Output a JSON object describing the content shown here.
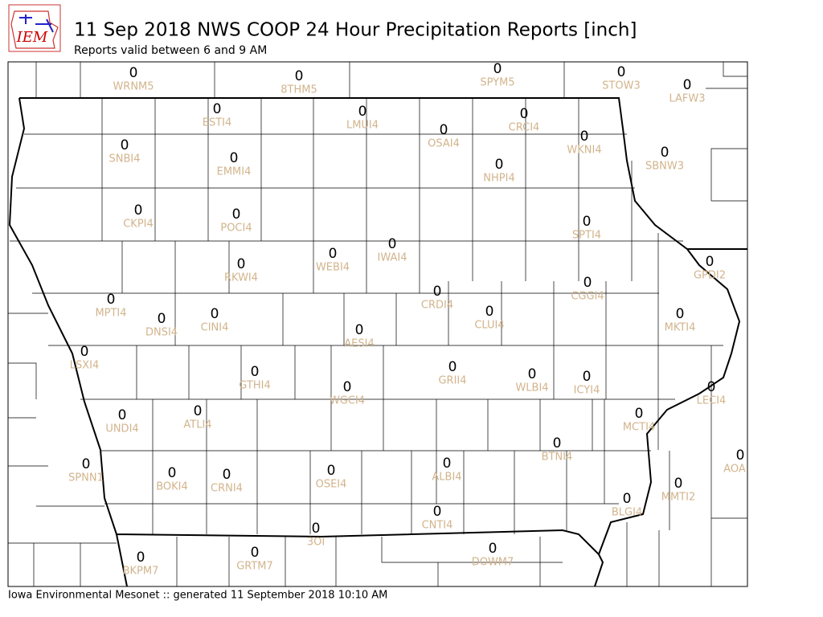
{
  "logo": "IEM",
  "header": {
    "title": "11 Sep 2018 NWS COOP 24 Hour Precipitation Reports [inch]",
    "subtitle": "Reports valid between 6 and 9 AM"
  },
  "stations": [
    {
      "id": "WRNM5",
      "value": 0
    },
    {
      "id": "8THM5",
      "value": 0
    },
    {
      "id": "SPYM5",
      "value": 0
    },
    {
      "id": "STOW3",
      "value": 0
    },
    {
      "id": "LAFW3",
      "value": 0
    },
    {
      "id": "ESTI4",
      "value": 0
    },
    {
      "id": "LMUI4",
      "value": 0
    },
    {
      "id": "CRCI4",
      "value": 0
    },
    {
      "id": "OSAI4",
      "value": 0
    },
    {
      "id": "WKNI4",
      "value": 0
    },
    {
      "id": "SNBI4",
      "value": 0
    },
    {
      "id": "EMMI4",
      "value": 0
    },
    {
      "id": "SBNW3",
      "value": 0
    },
    {
      "id": "NHPI4",
      "value": 0
    },
    {
      "id": "CKPI4",
      "value": 0
    },
    {
      "id": "POCI4",
      "value": 0
    },
    {
      "id": "SPTI4",
      "value": 0
    },
    {
      "id": "IWAI4",
      "value": 0
    },
    {
      "id": "GPDI2",
      "value": 0
    },
    {
      "id": "WEBI4",
      "value": 0
    },
    {
      "id": "RKWI4",
      "value": 0
    },
    {
      "id": "CGGI4",
      "value": 0
    },
    {
      "id": "CRDI4",
      "value": 0
    },
    {
      "id": "MPTI4",
      "value": 0
    },
    {
      "id": "CLUI4",
      "value": 0
    },
    {
      "id": "DNSI4",
      "value": 0
    },
    {
      "id": "CINI4",
      "value": 0
    },
    {
      "id": "MKTI4",
      "value": 0
    },
    {
      "id": "AESI4",
      "value": 0
    },
    {
      "id": "LSXI4",
      "value": 0
    },
    {
      "id": "GRII4",
      "value": 0
    },
    {
      "id": "WLBI4",
      "value": 0
    },
    {
      "id": "ICYI4",
      "value": 0
    },
    {
      "id": "GTHI4",
      "value": 0
    },
    {
      "id": "WGCI4",
      "value": 0
    },
    {
      "id": "LECI4",
      "value": 0
    },
    {
      "id": "ATLI4",
      "value": 0
    },
    {
      "id": "UNDI4",
      "value": 0
    },
    {
      "id": "MCTI4",
      "value": 0
    },
    {
      "id": "BTNI4",
      "value": 0
    },
    {
      "id": "AOA",
      "value": 0
    },
    {
      "id": "SPNN1",
      "value": 0
    },
    {
      "id": "ALBI4",
      "value": 0
    },
    {
      "id": "OSEI4",
      "value": 0
    },
    {
      "id": "BOKI4",
      "value": 0
    },
    {
      "id": "CRNI4",
      "value": 0
    },
    {
      "id": "MMTI2",
      "value": 0
    },
    {
      "id": "BLGI4",
      "value": 0
    },
    {
      "id": "CNTI4",
      "value": 0
    },
    {
      "id": "3OI",
      "value": 0
    },
    {
      "id": "DOWM7",
      "value": 0
    },
    {
      "id": "BKPM7",
      "value": 0
    },
    {
      "id": "GRTM7",
      "value": 0
    }
  ],
  "footer": "Iowa Environmental Mesonet :: generated 11 September 2018 10:10 AM"
}
